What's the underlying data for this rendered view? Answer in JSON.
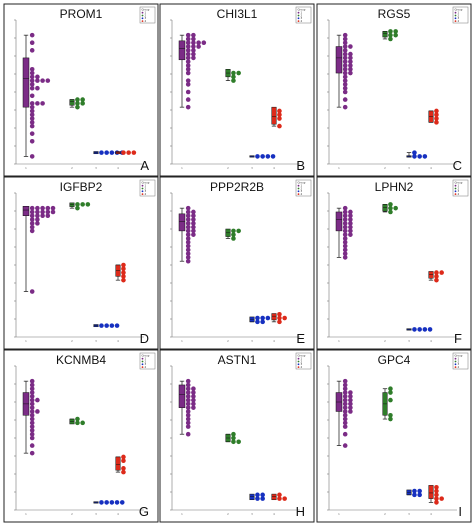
{
  "colors": {
    "group1": "#7b2c86",
    "group2": "#2f7d2a",
    "group3": "#1630c0",
    "group4": "#dd2a1a",
    "whisker": "#111111"
  },
  "legend": {
    "title": "Group",
    "items": [
      "1",
      "2",
      "3",
      "4"
    ]
  },
  "chart_data": [
    {
      "type": "scatter",
      "gene": "PROM1",
      "letter": "A",
      "groups": [
        {
          "group": "1",
          "points": [
            50,
            48,
            46,
            41,
            40,
            39,
            39,
            38,
            38,
            38,
            38,
            37,
            36,
            36,
            34,
            32,
            32,
            32,
            31,
            30,
            29,
            28,
            27,
            26,
            24,
            22,
            18
          ],
          "box": [
            31,
            38.5,
            44
          ]
        },
        {
          "group": "2",
          "points": [
            33,
            33,
            32,
            32,
            31
          ],
          "box": [
            31.5,
            32.5,
            33
          ]
        },
        {
          "group": "3",
          "points": [
            19,
            19,
            19,
            19,
            19
          ],
          "box": [
            18.7,
            19,
            19.3
          ]
        },
        {
          "group": "4",
          "points": [
            19,
            19,
            19
          ],
          "box": [
            18.7,
            19,
            19.3
          ]
        }
      ]
    },
    {
      "type": "scatter",
      "gene": "CHI3L1",
      "letter": "B",
      "groups": [
        {
          "group": "1",
          "points": [
            50,
            50,
            49,
            49,
            48,
            48,
            48,
            48,
            47,
            47,
            47,
            46,
            46,
            45,
            45,
            44,
            44,
            43,
            42,
            41,
            40,
            38,
            37,
            35,
            33,
            31
          ],
          "box": [
            43.5,
            46.5,
            48.5
          ]
        },
        {
          "group": "2",
          "points": [
            40,
            40,
            39,
            38
          ],
          "box": [
            39,
            40,
            41
          ]
        },
        {
          "group": "3",
          "points": [
            18,
            18,
            18,
            18
          ],
          "box": [
            17.8,
            18,
            18.2
          ]
        },
        {
          "group": "4",
          "points": [
            28,
            29,
            30,
            26
          ],
          "box": [
            26.5,
            28.5,
            31
          ]
        }
      ]
    },
    {
      "type": "scatter",
      "gene": "RGS5",
      "letter": "C",
      "groups": [
        {
          "group": "1",
          "points": [
            50,
            49,
            48,
            47,
            47,
            46,
            45,
            45,
            44,
            44,
            43,
            43,
            42,
            42,
            41,
            41,
            40,
            40,
            39,
            38,
            37,
            36,
            35,
            33,
            31
          ],
          "box": [
            40,
            44,
            47
          ]
        },
        {
          "group": "2",
          "points": [
            51,
            50,
            49,
            50,
            51
          ],
          "box": [
            49.5,
            50.5,
            51
          ]
        },
        {
          "group": "3",
          "points": [
            18,
            18,
            19,
            18
          ],
          "box": [
            17.8,
            18,
            18.2
          ]
        },
        {
          "group": "4",
          "points": [
            30,
            29,
            28,
            27
          ],
          "box": [
            27,
            28.5,
            30
          ]
        }
      ]
    },
    {
      "type": "scatter",
      "gene": "IGFBP2",
      "letter": "D",
      "groups": [
        {
          "group": "1",
          "points": [
            50,
            50,
            50,
            50,
            50,
            49,
            49,
            49,
            49,
            49,
            48,
            48,
            48,
            48,
            47,
            47,
            46,
            46,
            45,
            44,
            28
          ],
          "box": [
            48,
            49.5,
            50.5
          ]
        },
        {
          "group": "2",
          "points": [
            51,
            51,
            50,
            51
          ],
          "box": [
            50.4,
            51,
            51.4
          ]
        },
        {
          "group": "3",
          "points": [
            19,
            19,
            19,
            19
          ],
          "box": [
            18.7,
            19,
            19.3
          ]
        },
        {
          "group": "4",
          "points": [
            35,
            34,
            33,
            32,
            31
          ],
          "box": [
            32,
            33.5,
            35
          ]
        }
      ]
    },
    {
      "type": "scatter",
      "gene": "PPP2R2B",
      "letter": "E",
      "groups": [
        {
          "group": "1",
          "points": [
            50,
            49,
            49,
            48,
            48,
            47,
            47,
            46,
            46,
            45,
            45,
            44,
            44,
            43,
            43,
            42,
            41,
            40,
            39,
            38,
            37,
            36
          ],
          "box": [
            44,
            46.5,
            48.5
          ]
        },
        {
          "group": "2",
          "points": [
            44,
            44,
            43,
            42
          ],
          "box": [
            42.5,
            43.5,
            44.5
          ]
        },
        {
          "group": "3",
          "points": [
            21,
            21,
            20,
            20,
            21
          ],
          "box": [
            20,
            20.7,
            21.3
          ]
        },
        {
          "group": "4",
          "points": [
            22,
            21,
            21,
            20
          ],
          "box": [
            20.5,
            21.5,
            22.2
          ]
        }
      ]
    },
    {
      "type": "scatter",
      "gene": "LPHN2",
      "letter": "F",
      "groups": [
        {
          "group": "1",
          "points": [
            50,
            49,
            49,
            48,
            48,
            47,
            47,
            46,
            46,
            45,
            45,
            44,
            44,
            43,
            43,
            42,
            41,
            40,
            39,
            38,
            37
          ],
          "box": [
            44,
            47,
            49
          ]
        },
        {
          "group": "2",
          "points": [
            51,
            50,
            49,
            50
          ],
          "box": [
            49.2,
            50.2,
            51
          ]
        },
        {
          "group": "3",
          "points": [
            18,
            18,
            18,
            18
          ],
          "box": [
            17.8,
            18,
            18.2
          ]
        },
        {
          "group": "4",
          "points": [
            33,
            33,
            32,
            31
          ],
          "box": [
            31.5,
            32.5,
            33.3
          ]
        }
      ]
    },
    {
      "type": "scatter",
      "gene": "KCNMB4",
      "letter": "G",
      "groups": [
        {
          "group": "1",
          "points": [
            50,
            49,
            48,
            47,
            46,
            45,
            45,
            44,
            43,
            42,
            42,
            41,
            40,
            39,
            38,
            37,
            36,
            35,
            33,
            31
          ],
          "box": [
            41,
            44,
            47
          ]
        },
        {
          "group": "2",
          "points": [
            40,
            39,
            39
          ],
          "box": [
            38.7,
            39.4,
            40
          ]
        },
        {
          "group": "3",
          "points": [
            18,
            18,
            18,
            18,
            18
          ],
          "box": [
            17.8,
            18,
            18.2
          ]
        },
        {
          "group": "4",
          "points": [
            30,
            29,
            27,
            26
          ],
          "box": [
            26.5,
            28,
            30
          ]
        }
      ]
    },
    {
      "type": "scatter",
      "gene": "ASTN1",
      "letter": "H",
      "groups": [
        {
          "group": "1",
          "points": [
            50,
            49,
            48,
            48,
            47,
            47,
            46,
            46,
            45,
            45,
            44,
            44,
            43,
            43,
            42,
            41,
            40,
            39,
            38,
            36
          ],
          "box": [
            43,
            46.5,
            49
          ]
        },
        {
          "group": "2",
          "points": [
            36,
            35,
            34,
            34
          ],
          "box": [
            34,
            35,
            36
          ]
        },
        {
          "group": "3",
          "points": [
            20,
            20,
            19,
            19
          ],
          "box": [
            18.7,
            19.5,
            20.2
          ]
        },
        {
          "group": "4",
          "points": [
            20,
            19,
            19
          ],
          "box": [
            18.7,
            19.5,
            20.2
          ]
        }
      ]
    },
    {
      "type": "scatter",
      "gene": "GPC4",
      "letter": "I",
      "groups": [
        {
          "group": "1",
          "points": [
            50,
            49,
            48,
            47,
            47,
            46,
            46,
            45,
            45,
            44,
            44,
            43,
            43,
            42,
            42,
            41,
            40,
            39,
            38,
            36,
            33
          ],
          "box": [
            42,
            44.5,
            47
          ]
        },
        {
          "group": "2",
          "points": [
            48,
            47,
            45,
            41,
            40
          ],
          "box": [
            41,
            44,
            47
          ]
        },
        {
          "group": "3",
          "points": [
            21,
            21,
            20,
            20
          ],
          "box": [
            20,
            20.7,
            21.3
          ]
        },
        {
          "group": "4",
          "points": [
            22,
            21,
            20,
            19,
            18,
            19
          ],
          "box": [
            19,
            20.5,
            22.5
          ]
        }
      ]
    }
  ]
}
